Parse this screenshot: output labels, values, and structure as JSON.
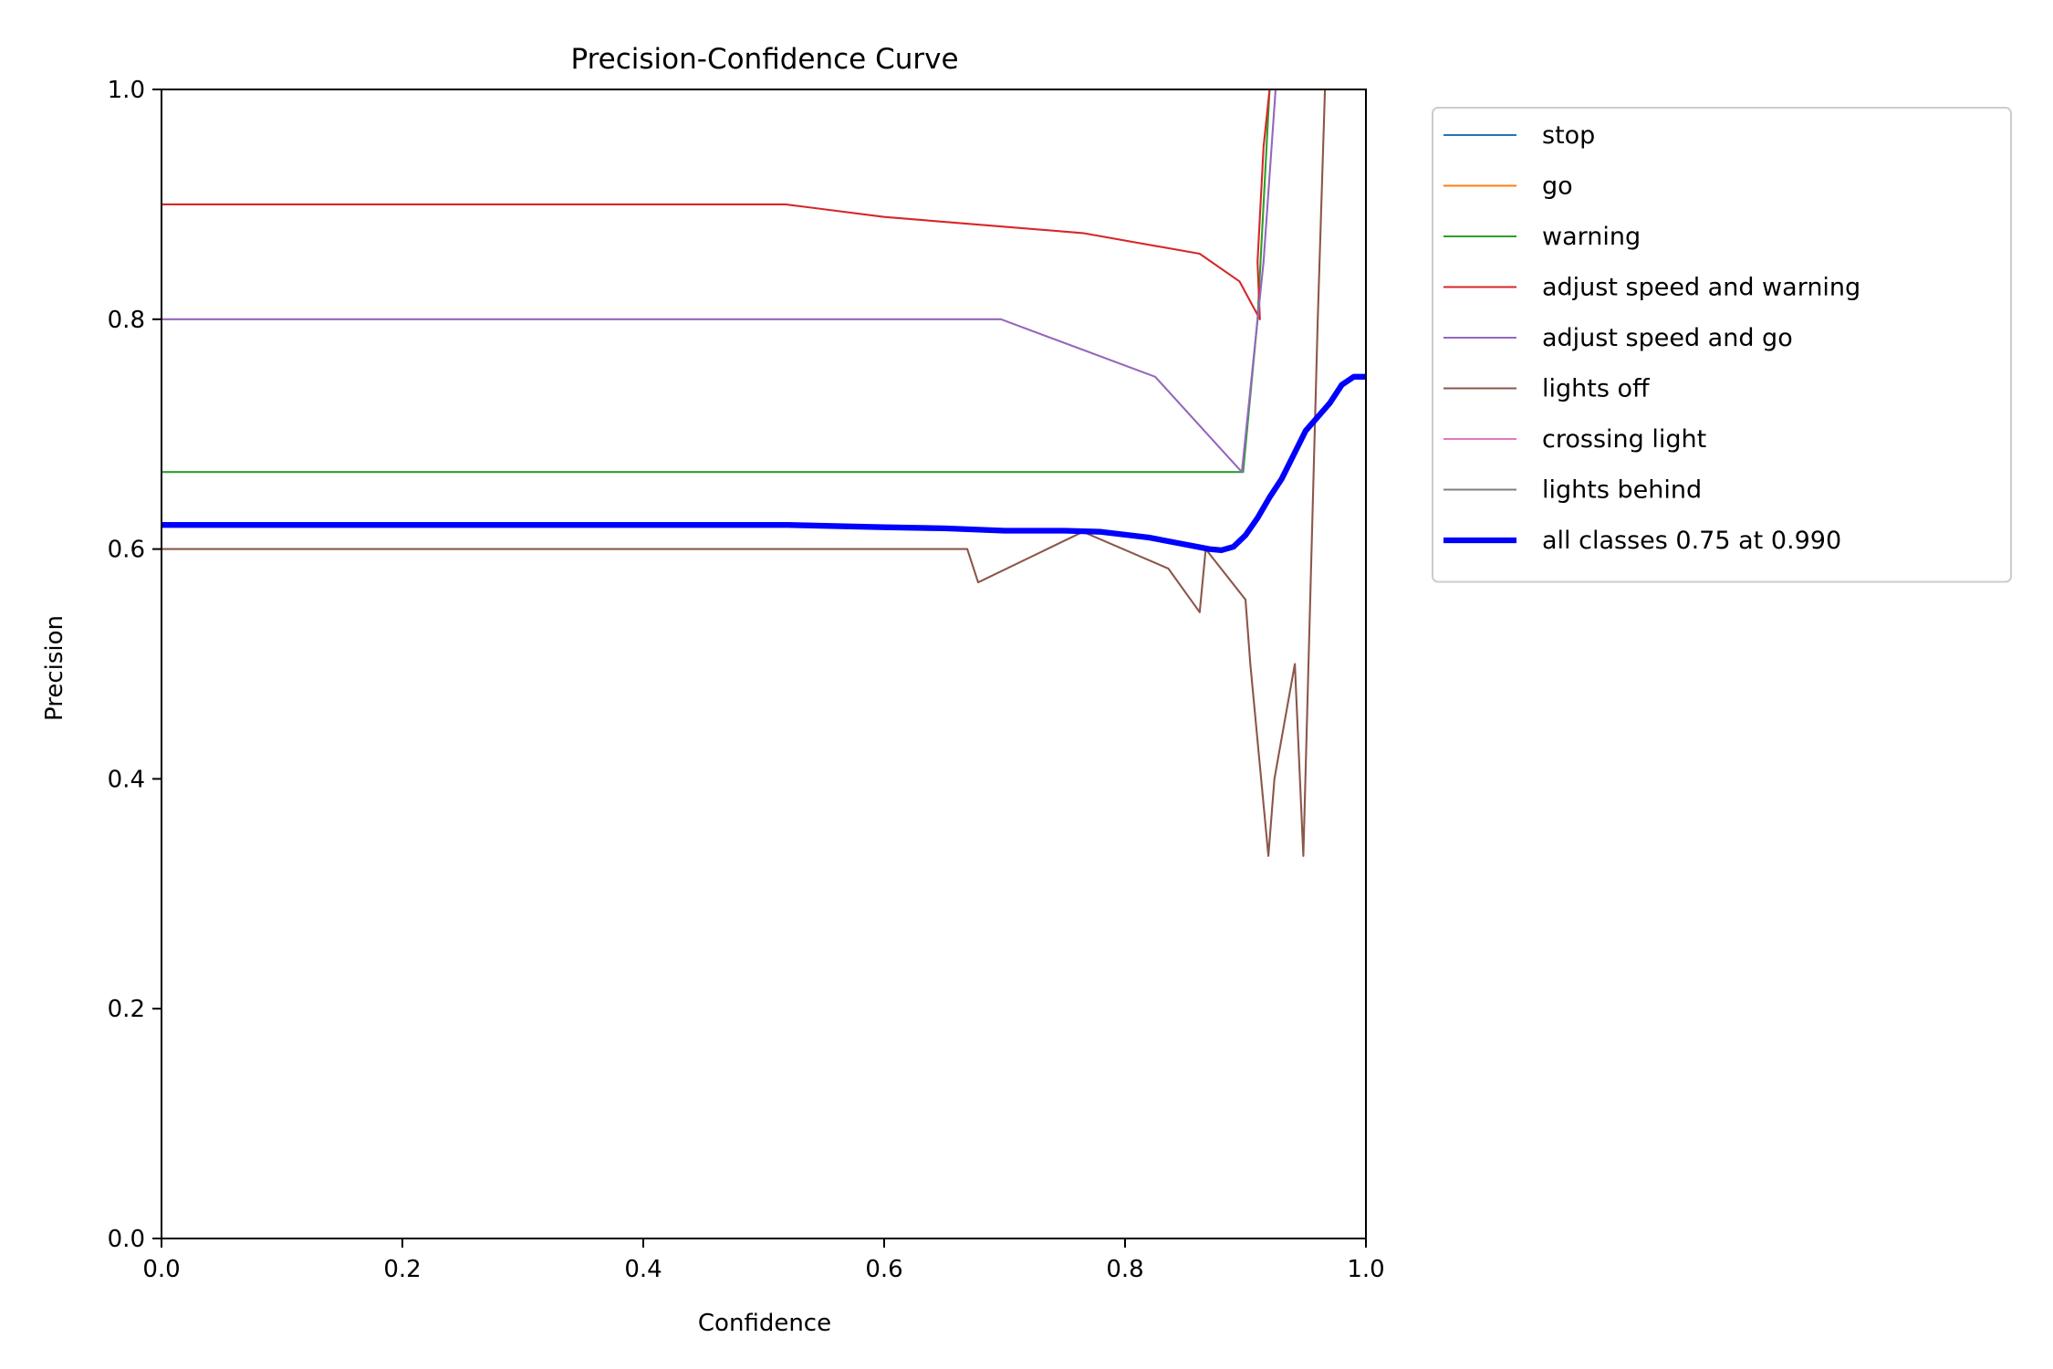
{
  "chart_data": {
    "type": "line",
    "title": "Precision-Confidence Curve",
    "xlabel": "Confidence",
    "ylabel": "Precision",
    "xlim": [
      0,
      1
    ],
    "ylim": [
      0,
      1
    ],
    "xticks": [
      "0.0",
      "0.2",
      "0.4",
      "0.6",
      "0.8",
      "1.0"
    ],
    "yticks": [
      "0.0",
      "0.2",
      "0.4",
      "0.6",
      "0.8",
      "1.0"
    ],
    "grid": false,
    "legend_position": "outside-top-right",
    "series": [
      {
        "name": "stop",
        "color": "#1f77b4",
        "width": 1,
        "points": []
      },
      {
        "name": "go",
        "color": "#ff7f0e",
        "width": 1,
        "points": []
      },
      {
        "name": "warning",
        "color": "#2ca02c",
        "width": 1,
        "points": [
          [
            0.0,
            0.667
          ],
          [
            0.898,
            0.667
          ],
          [
            0.91,
            0.8
          ],
          [
            0.92,
            1.0
          ]
        ]
      },
      {
        "name": "adjust speed and warning",
        "color": "#d62728",
        "width": 1,
        "points": [
          [
            0.0,
            0.9
          ],
          [
            0.518,
            0.9
          ],
          [
            0.6,
            0.889
          ],
          [
            0.765,
            0.875
          ],
          [
            0.862,
            0.857
          ],
          [
            0.895,
            0.833
          ],
          [
            0.912,
            0.8
          ],
          [
            0.91,
            0.85
          ],
          [
            0.915,
            0.95
          ],
          [
            0.92,
            1.0
          ]
        ]
      },
      {
        "name": "adjust speed and go",
        "color": "#9467bd",
        "width": 1,
        "points": [
          [
            0.0,
            0.8
          ],
          [
            0.697,
            0.8
          ],
          [
            0.825,
            0.75
          ],
          [
            0.897,
            0.667
          ],
          [
            0.915,
            0.85
          ],
          [
            0.925,
            1.0
          ]
        ]
      },
      {
        "name": "lights off",
        "color": "#8c564b",
        "width": 1,
        "points": [
          [
            0.0,
            0.6
          ],
          [
            0.669,
            0.6
          ],
          [
            0.678,
            0.571
          ],
          [
            0.765,
            0.615
          ],
          [
            0.836,
            0.583
          ],
          [
            0.862,
            0.545
          ],
          [
            0.867,
            0.6
          ],
          [
            0.9,
            0.556
          ],
          [
            0.904,
            0.5
          ],
          [
            0.919,
            0.333
          ],
          [
            0.924,
            0.4
          ],
          [
            0.941,
            0.5
          ],
          [
            0.948,
            0.333
          ],
          [
            0.96,
            0.8
          ],
          [
            0.966,
            1.0
          ]
        ]
      },
      {
        "name": "crossing light",
        "color": "#e377c2",
        "width": 1,
        "points": []
      },
      {
        "name": "lights behind",
        "color": "#7f7f7f",
        "width": 1,
        "points": []
      },
      {
        "name": "all classes 0.75 at 0.990",
        "color": "#0000ff",
        "width": 3,
        "points": [
          [
            0.0,
            0.621
          ],
          [
            0.1,
            0.621
          ],
          [
            0.3,
            0.621
          ],
          [
            0.52,
            0.621
          ],
          [
            0.6,
            0.619
          ],
          [
            0.65,
            0.618
          ],
          [
            0.7,
            0.616
          ],
          [
            0.75,
            0.616
          ],
          [
            0.78,
            0.615
          ],
          [
            0.82,
            0.61
          ],
          [
            0.845,
            0.605
          ],
          [
            0.87,
            0.6
          ],
          [
            0.88,
            0.599
          ],
          [
            0.89,
            0.602
          ],
          [
            0.9,
            0.612
          ],
          [
            0.91,
            0.627
          ],
          [
            0.92,
            0.645
          ],
          [
            0.93,
            0.661
          ],
          [
            0.94,
            0.682
          ],
          [
            0.95,
            0.703
          ],
          [
            0.96,
            0.715
          ],
          [
            0.97,
            0.727
          ],
          [
            0.98,
            0.743
          ],
          [
            0.99,
            0.75
          ],
          [
            1.0,
            0.75
          ]
        ]
      }
    ]
  }
}
